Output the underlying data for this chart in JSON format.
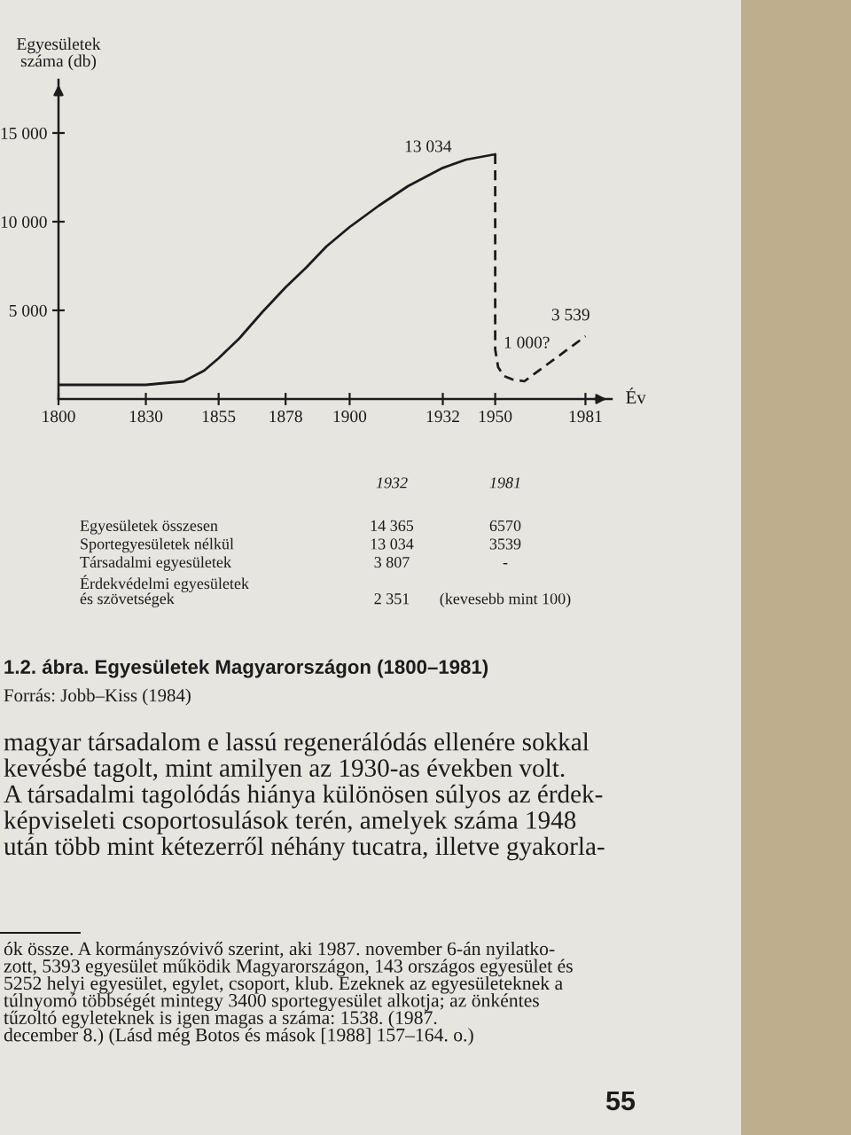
{
  "chart_data": {
    "type": "line",
    "title": "1.2. ábra. Egyesületek Magyarországon (1800–1981)",
    "xlabel": "Év",
    "ylabel": "Egyesületek\nszáma (db)",
    "xlim": [
      1800,
      1990
    ],
    "xticks": [
      1800,
      1830,
      1855,
      1878,
      1900,
      1932,
      1950,
      1981
    ],
    "ylim": [
      0,
      18000
    ],
    "yticks": [
      {
        "value": 5000,
        "label": "5 000"
      },
      {
        "value": 10000,
        "label": "10 000"
      },
      {
        "value": 15000,
        "label": "15 000"
      }
    ],
    "series": [
      {
        "color": "#1c1c1c",
        "line_style": "solid",
        "x": [
          1800,
          1830,
          1843,
          1850,
          1855,
          1862,
          1870,
          1878,
          1885,
          1892,
          1900,
          1910,
          1920,
          1932,
          1940,
          1950
        ],
        "values": [
          800,
          800,
          1000,
          1600,
          2300,
          3400,
          4900,
          6300,
          7400,
          8600,
          9700,
          10900,
          12000,
          13034,
          13500,
          13800
        ]
      },
      {
        "color": "#1c1c1c",
        "line_style": "dashed",
        "x": [
          1950,
          1950,
          1951,
          1953,
          1956,
          1960,
          1981
        ],
        "values": [
          13800,
          2800,
          1800,
          1300,
          1100,
          1000,
          3539
        ]
      }
    ],
    "annotations": [
      {
        "text": "13 034",
        "x": 1932,
        "y": 13034
      },
      {
        "text": "1 000?",
        "x": 1960,
        "y": 1000
      },
      {
        "text": "3 539",
        "x": 1981,
        "y": 3539
      },
      "1932",
      "1981",
      "Egyesületek összesen",
      "14 365",
      "6570",
      "Sportegyesületek nélkül",
      "13 034",
      "3539",
      "Társadalmi egyesületek",
      "3 807",
      "-",
      "Érdekvédelmi egyesületek\nés szövetségek",
      "2 351",
      "(kevesebb mint 100)",
      "Forrás: Jobb–Kiss (1984)",
      "magyar társadalom e lassú regenerálódás ellenére sokkal\nkevésbé tagolt, mint amilyen az 1930-as években volt.\nA társadalmi tagolódás hiánya különösen súlyos az érdek-\nképviseleti csoportosulások terén, amelyek száma 1948\nután több mint kétezerről néhány tucatra, illetve gyakorla-",
      "ók össze. A kormányszóvivő szerint, aki 1987. november 6-án nyilatko-\nzott, 5393 egyesület működik Magyarországon, 143 országos egyesület és\n5252 helyi egyesület, egylet, csoport, klub. Ezeknek az egyesületeknek a\ntúlnyomó többségét mintegy 3400 sportegyesület alkotja; az önkéntes\ntűzoltó egyleteknek is igen magas a száma: 1538. (1987.\ndecember 8.) (Lásd még Botos és mások [1988] 157–164. o.)",
      "55"
    ]
  }
}
